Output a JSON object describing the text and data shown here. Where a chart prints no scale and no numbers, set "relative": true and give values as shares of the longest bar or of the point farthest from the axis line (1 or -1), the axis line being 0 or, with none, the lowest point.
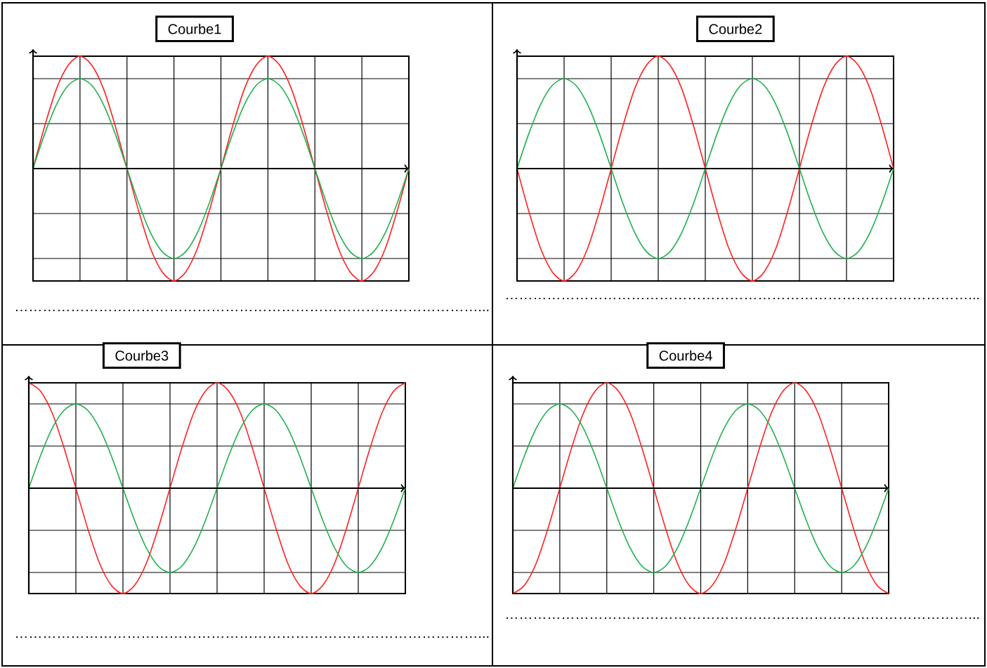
{
  "chart_data": [
    {
      "type": "line",
      "title": "Courbe1",
      "relative": true,
      "grid": true,
      "categories": [
        null,
        null,
        null,
        null,
        null,
        null,
        null,
        null,
        null,
        null,
        null,
        null,
        null,
        null,
        null,
        null,
        null,
        null,
        null,
        null,
        null,
        null,
        null,
        null,
        null,
        null,
        null,
        null,
        null,
        null,
        null,
        null,
        null
      ],
      "series": [
        {
          "color": "#ff2020",
          "values": [
            0,
            0.38,
            0.71,
            0.92,
            1,
            0.92,
            0.71,
            0.38,
            0,
            -0.38,
            -0.71,
            -0.92,
            -1,
            -0.92,
            -0.71,
            -0.38,
            0,
            0.38,
            0.71,
            0.92,
            1,
            0.92,
            0.71,
            0.38,
            0,
            -0.38,
            -0.71,
            -0.92,
            -1,
            -0.92,
            -0.71,
            -0.38,
            0
          ]
        },
        {
          "color": "#20b050",
          "values": [
            0,
            0.31,
            0.57,
            0.74,
            0.8,
            0.74,
            0.57,
            0.31,
            0,
            -0.31,
            -0.57,
            -0.74,
            -0.8,
            -0.74,
            -0.57,
            -0.31,
            0,
            0.31,
            0.57,
            0.74,
            0.8,
            0.74,
            0.57,
            0.31,
            0,
            -0.31,
            -0.57,
            -0.74,
            -0.8,
            -0.74,
            -0.57,
            -0.31,
            0
          ]
        }
      ],
      "annotations": [
        "………………………………………………………………………………………..."
      ]
    },
    {
      "type": "line",
      "title": "Courbe2",
      "relative": true,
      "grid": true,
      "categories": [
        null,
        null,
        null,
        null,
        null,
        null,
        null,
        null,
        null,
        null,
        null,
        null,
        null,
        null,
        null,
        null,
        null,
        null,
        null,
        null,
        null,
        null,
        null,
        null,
        null,
        null,
        null,
        null,
        null,
        null,
        null,
        null,
        null
      ],
      "series": [
        {
          "color": "#ff2020",
          "values": [
            0,
            -0.38,
            -0.71,
            -0.92,
            -1,
            -0.92,
            -0.71,
            -0.38,
            0,
            0.38,
            0.71,
            0.92,
            1,
            0.92,
            0.71,
            0.38,
            0,
            -0.38,
            -0.71,
            -0.92,
            -1,
            -0.92,
            -0.71,
            -0.38,
            0,
            0.38,
            0.71,
            0.92,
            1,
            0.92,
            0.71,
            0.38,
            0
          ]
        },
        {
          "color": "#20b050",
          "values": [
            0,
            0.31,
            0.57,
            0.74,
            0.8,
            0.74,
            0.57,
            0.31,
            0,
            -0.31,
            -0.57,
            -0.74,
            -0.8,
            -0.74,
            -0.57,
            -0.31,
            0,
            0.31,
            0.57,
            0.74,
            0.8,
            0.74,
            0.57,
            0.31,
            0,
            -0.31,
            -0.57,
            -0.74,
            -0.8,
            -0.74,
            -0.57,
            -0.31,
            0
          ]
        }
      ],
      "annotations": [
        "………………………………………………………………………………………..."
      ]
    },
    {
      "type": "line",
      "title": "Courbe3",
      "relative": true,
      "grid": true,
      "categories": [
        null,
        null,
        null,
        null,
        null,
        null,
        null,
        null,
        null,
        null,
        null,
        null,
        null,
        null,
        null,
        null,
        null,
        null,
        null,
        null,
        null,
        null,
        null,
        null,
        null,
        null,
        null,
        null,
        null,
        null,
        null,
        null,
        null
      ],
      "series": [
        {
          "color": "#ff2020",
          "values": [
            1,
            0.92,
            0.71,
            0.38,
            0,
            -0.38,
            -0.71,
            -0.92,
            -1,
            -0.92,
            -0.71,
            -0.38,
            0,
            0.38,
            0.71,
            0.92,
            1,
            0.92,
            0.71,
            0.38,
            0,
            -0.38,
            -0.71,
            -0.92,
            -1,
            -0.92,
            -0.71,
            -0.38,
            0,
            0.38,
            0.71,
            0.92,
            1
          ]
        },
        {
          "color": "#20b050",
          "values": [
            0,
            0.31,
            0.57,
            0.74,
            0.8,
            0.74,
            0.57,
            0.31,
            0,
            -0.31,
            -0.57,
            -0.74,
            -0.8,
            -0.74,
            -0.57,
            -0.31,
            0,
            0.31,
            0.57,
            0.74,
            0.8,
            0.74,
            0.57,
            0.31,
            0,
            -0.31,
            -0.57,
            -0.74,
            -0.8,
            -0.74,
            -0.57,
            -0.31,
            0
          ]
        }
      ],
      "annotations": [
        "………………………………………………………………………………………..."
      ]
    },
    {
      "type": "line",
      "title": "Courbe4",
      "relative": true,
      "grid": true,
      "categories": [
        null,
        null,
        null,
        null,
        null,
        null,
        null,
        null,
        null,
        null,
        null,
        null,
        null,
        null,
        null,
        null,
        null,
        null,
        null,
        null,
        null,
        null,
        null,
        null,
        null,
        null,
        null,
        null,
        null,
        null,
        null,
        null,
        null
      ],
      "series": [
        {
          "color": "#ff2020",
          "values": [
            -1,
            -0.92,
            -0.71,
            -0.38,
            0,
            0.38,
            0.71,
            0.92,
            1,
            0.92,
            0.71,
            0.38,
            0,
            -0.38,
            -0.71,
            -0.92,
            -1,
            -0.92,
            -0.71,
            -0.38,
            0,
            0.38,
            0.71,
            0.92,
            1,
            0.92,
            0.71,
            0.38,
            0,
            -0.38,
            -0.71,
            -0.92,
            -1
          ]
        },
        {
          "color": "#20b050",
          "values": [
            0,
            0.31,
            0.57,
            0.74,
            0.8,
            0.74,
            0.57,
            0.31,
            0,
            -0.31,
            -0.57,
            -0.74,
            -0.8,
            -0.74,
            -0.57,
            -0.31,
            0,
            0.31,
            0.57,
            0.74,
            0.8,
            0.74,
            0.57,
            0.31,
            0,
            -0.31,
            -0.57,
            -0.74,
            -0.8,
            -0.74,
            -0.57,
            -0.31,
            0
          ]
        }
      ],
      "annotations": [
        "………………………………………………………………………………………..."
      ]
    }
  ]
}
